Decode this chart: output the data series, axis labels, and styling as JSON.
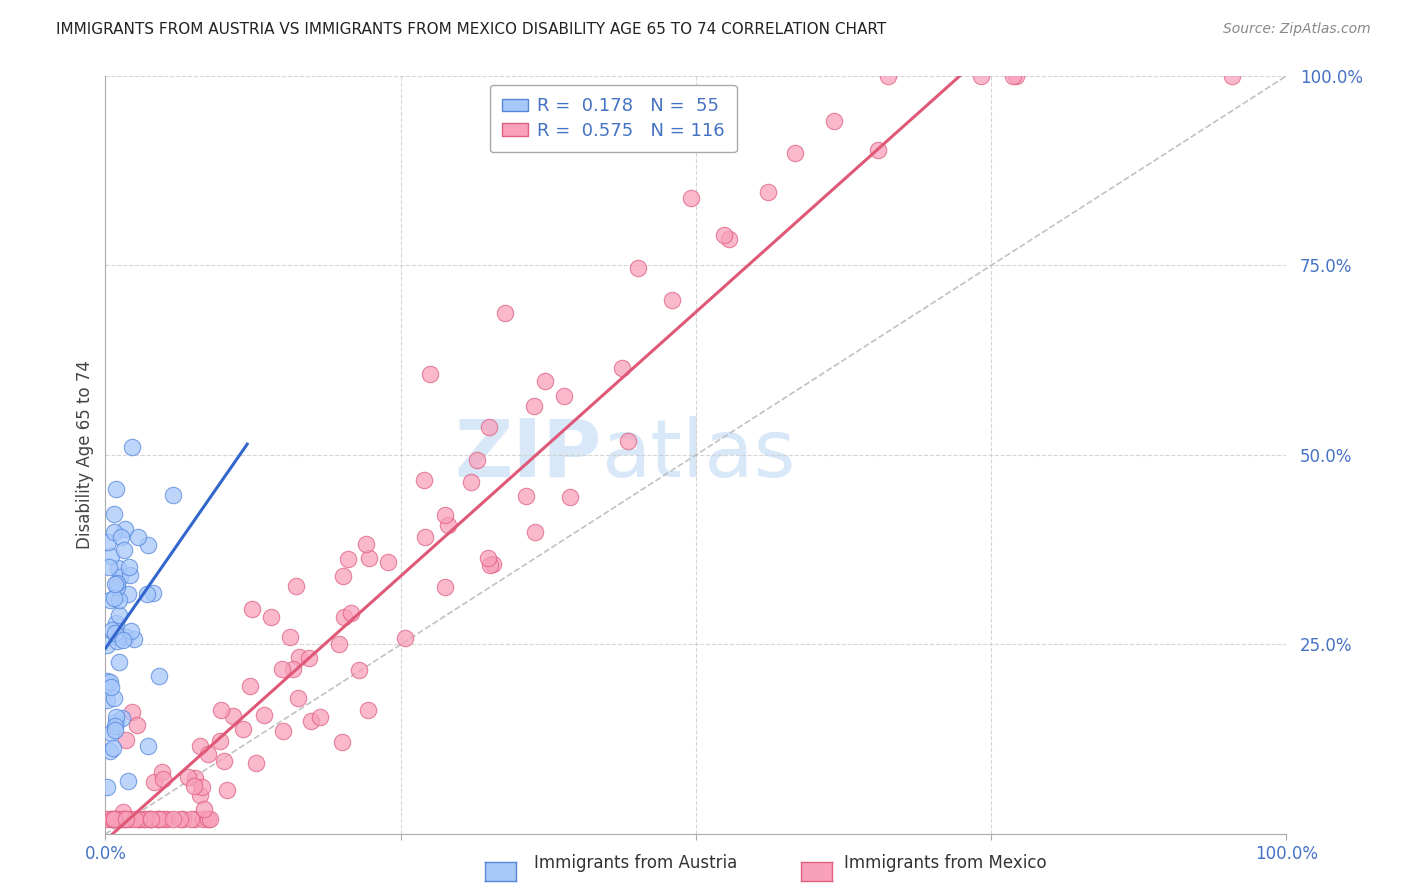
{
  "title": "IMMIGRANTS FROM AUSTRIA VS IMMIGRANTS FROM MEXICO DISABILITY AGE 65 TO 74 CORRELATION CHART",
  "source": "Source: ZipAtlas.com",
  "ylabel": "Disability Age 65 to 74",
  "r_austria": 0.178,
  "n_austria": 55,
  "r_mexico": 0.575,
  "n_mexico": 116,
  "color_austria_fill": "#a8c8fa",
  "color_austria_edge": "#5588dd",
  "color_mexico_fill": "#f8a0bc",
  "color_mexico_edge": "#e06080",
  "color_austria_line": "#3366cc",
  "color_mexico_line": "#e05878",
  "color_axis_labels": "#4472c4",
  "color_title": "#222222",
  "background_color": "#ffffff",
  "grid_color": "#cccccc",
  "watermark_color": "#d8e8f8",
  "legend_text_dark": "#333333",
  "legend_text_blue": "#4472c4"
}
